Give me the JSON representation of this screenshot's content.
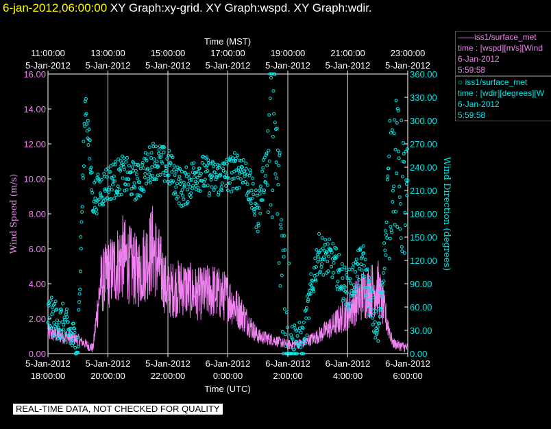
{
  "header": {
    "timestamp": "6-jan-2012,06:00:00",
    "titles": "XY Graph:xy-grid.  XY Graph:wspd.  XY Graph:wdir."
  },
  "legend": [
    {
      "line1": "——iss1/surface_met",
      "line2": "time : [wspd][m/s][Wind",
      "line3": "6-Jan-2012",
      "line4": "5:59:58",
      "color": "#ee82ee"
    },
    {
      "line1": "○ iss1/surface_met",
      "line2": "time : [wdir][degrees][W",
      "line3": "6-Jan-2012",
      "line4": "5:59:58",
      "color": "#00e8e8"
    }
  ],
  "banner": "REAL-TIME DATA, NOT CHECKED FOR QUALITY",
  "chart_data": {
    "type": "line",
    "top_axis": {
      "title": "Time (MST)",
      "ticks": [
        {
          "t": "11:00:00",
          "d": "5-Jan-2012"
        },
        {
          "t": "13:00:00",
          "d": "5-Jan-2012"
        },
        {
          "t": "15:00:00",
          "d": "5-Jan-2012"
        },
        {
          "t": "17:00:00",
          "d": "5-Jan-2012"
        },
        {
          "t": "19:00:00",
          "d": "5-Jan-2012"
        },
        {
          "t": "21:00:00",
          "d": "5-Jan-2012"
        },
        {
          "t": "23:00:00",
          "d": "5-Jan-2012"
        }
      ]
    },
    "bottom_axis": {
      "title": "Time (UTC)",
      "ticks": [
        {
          "d": "5-Jan-2012",
          "t": "18:00:00"
        },
        {
          "d": "5-Jan-2012",
          "t": "20:00:00"
        },
        {
          "d": "5-Jan-2012",
          "t": "22:00:00"
        },
        {
          "d": "6-Jan-2012",
          "t": "0:00:00"
        },
        {
          "d": "6-Jan-2012",
          "t": "2:00:00"
        },
        {
          "d": "6-Jan-2012",
          "t": "4:00:00"
        },
        {
          "d": "6-Jan-2012",
          "t": "6:00:00"
        }
      ]
    },
    "left_axis": {
      "label": "Wind Speed (m/s)",
      "ticks": [
        "0.00",
        "2.00",
        "4.00",
        "6.00",
        "8.00",
        "10.00",
        "12.00",
        "14.00",
        "16.00"
      ],
      "range": [
        0,
        16
      ],
      "color": "#ee82ee"
    },
    "right_axis": {
      "label": "Wind Direction (degrees)",
      "ticks": [
        "0.00",
        "30.00",
        "60.00",
        "90.00",
        "120.00",
        "150.00",
        "180.00",
        "210.00",
        "240.00",
        "270.00",
        "300.00",
        "330.00",
        "360.00"
      ],
      "range": [
        0,
        360
      ],
      "color": "#00e8e8"
    },
    "x_range_utc": [
      "5-Jan-2012 18:00:00",
      "6-Jan-2012 6:00:00"
    ],
    "grid": true,
    "series": [
      {
        "name": "iss1/surface_met time : [wspd][m/s]",
        "style": "line",
        "color": "#ee82ee",
        "x": [
          "5-Jan 18:00",
          "5-Jan 18:30",
          "5-Jan 19:00",
          "5-Jan 19:30",
          "5-Jan 19:45",
          "5-Jan 20:00",
          "5-Jan 20:30",
          "5-Jan 21:00",
          "5-Jan 21:30",
          "5-Jan 22:00",
          "5-Jan 22:30",
          "5-Jan 23:00",
          "5-Jan 23:30",
          "6-Jan 0:00",
          "6-Jan 0:30",
          "6-Jan 1:00",
          "6-Jan 1:30",
          "6-Jan 2:00",
          "6-Jan 2:30",
          "6-Jan 3:00",
          "6-Jan 3:30",
          "6-Jan 4:00",
          "6-Jan 4:30",
          "6-Jan 5:00",
          "6-Jan 5:30",
          "6-Jan 6:00"
        ],
        "y": [
          1.2,
          1.0,
          0.8,
          0.3,
          4.0,
          4.5,
          5.5,
          4.6,
          6.0,
          3.6,
          3.8,
          3.4,
          3.6,
          3.2,
          2.2,
          1.0,
          0.8,
          0.5,
          0.6,
          1.0,
          1.6,
          2.4,
          3.4,
          3.8,
          0.6,
          0.3
        ]
      },
      {
        "name": "iss1/surface_met time : [wdir][degrees]",
        "style": "points",
        "color": "#00e8e8",
        "x": [
          "5-Jan 18:00",
          "5-Jan 18:30",
          "5-Jan 19:00",
          "5-Jan 19:15",
          "5-Jan 19:30",
          "5-Jan 20:00",
          "5-Jan 20:30",
          "5-Jan 21:00",
          "5-Jan 21:30",
          "5-Jan 22:00",
          "5-Jan 22:30",
          "5-Jan 23:00",
          "5-Jan 23:30",
          "6-Jan 0:00",
          "6-Jan 0:30",
          "6-Jan 1:00",
          "6-Jan 1:30",
          "6-Jan 2:00",
          "6-Jan 2:30",
          "6-Jan 3:00",
          "6-Jan 3:30",
          "6-Jan 4:00",
          "6-Jan 4:30",
          "6-Jan 5:00",
          "6-Jan 5:30",
          "6-Jan 6:00"
        ],
        "y": [
          50,
          40,
          10,
          330,
          200,
          220,
          230,
          220,
          250,
          240,
          210,
          235,
          225,
          230,
          240,
          180,
          300,
          20,
          15,
          130,
          120,
          80,
          120,
          20,
          260,
          180
        ]
      }
    ]
  }
}
